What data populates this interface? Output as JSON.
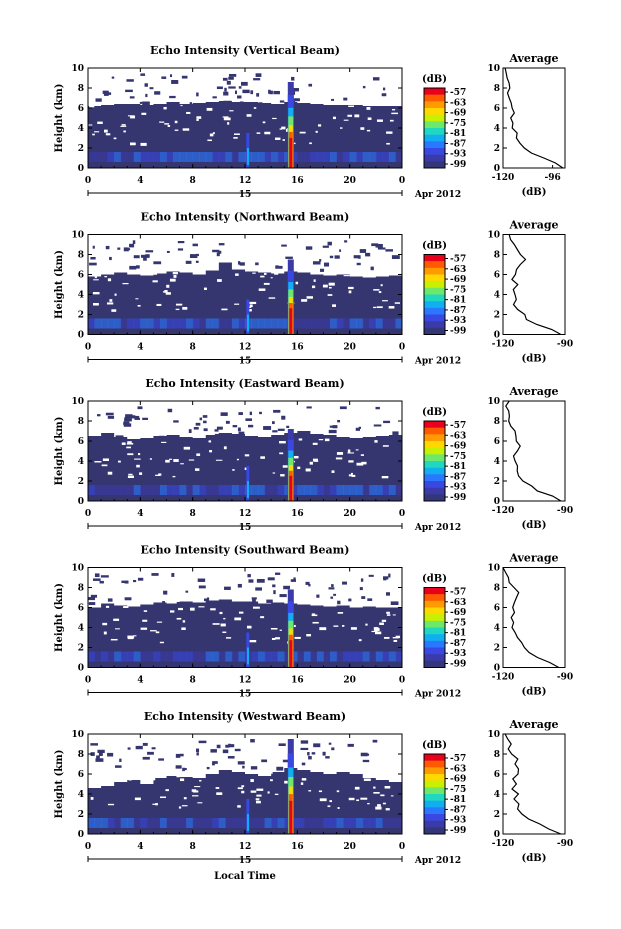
{
  "xlabel": "Local Time",
  "date_label": "Apr 2012",
  "colorbar_unit": "(dB)",
  "colorbar_ticks": [
    "-57",
    "-63",
    "-69",
    "-75",
    "-81",
    "-87",
    "-93",
    "-99"
  ],
  "colorbar_colors": [
    "#e8001c",
    "#ff5a00",
    "#ff9a00",
    "#ffd800",
    "#c8f000",
    "#6ee86a",
    "#20d8c0",
    "#10b0f0",
    "#2a78ff",
    "#3848e0",
    "#3a3aa8",
    "#34367a"
  ],
  "panel_bg_color": "#35366f",
  "avg_title": "Average",
  "avg_xlabel": "(dB)",
  "chart_data": [
    {
      "type": "heatmap",
      "title": "Echo Intensity (Vertical Beam)",
      "ylabel": "Height (km)",
      "xticks": [
        "0",
        "4",
        "8",
        "12",
        "16",
        "20",
        "0"
      ],
      "day_label": "15",
      "yticks": [
        "0",
        "2",
        "4",
        "6",
        "8",
        "10"
      ],
      "xlim": [
        0,
        24
      ],
      "ylim": [
        0,
        10
      ],
      "echo_top_km": [
        6.2,
        6.3,
        6.4,
        6.4,
        6.3,
        6.4,
        6.6,
        6.4,
        6.5,
        6.6,
        6.7,
        6.6,
        6.6,
        6.5,
        6.4,
        6.6,
        6.5,
        6.4,
        6.3,
        6.3,
        6.3,
        6.2,
        6.2,
        6.2
      ],
      "rain_hour": 15.5,
      "rain_top_km": 8.6,
      "avg_xticks": [
        "-120",
        "-96"
      ],
      "avg_xlim": [
        -120,
        -90
      ],
      "avg_profile": {
        "height_km": [
          0,
          0.5,
          1,
          1.5,
          2,
          2.5,
          3,
          3.5,
          4,
          4.5,
          5,
          5.5,
          6,
          6.5,
          7,
          7.5,
          8,
          8.5,
          9,
          9.5,
          10
        ],
        "db": [
          -91,
          -95,
          -101,
          -106,
          -110,
          -112,
          -114,
          -114,
          -116,
          -115,
          -117,
          -115,
          -116,
          -117,
          -116,
          -117,
          -117,
          -118,
          -119,
          -118,
          -119
        ]
      }
    },
    {
      "type": "heatmap",
      "title": "Echo Intensity (Northward Beam)",
      "ylabel": "Height (km)",
      "xticks": [
        "0",
        "4",
        "8",
        "12",
        "16",
        "20",
        "0"
      ],
      "day_label": "15",
      "yticks": [
        "0",
        "2",
        "4",
        "6",
        "8",
        "10"
      ],
      "xlim": [
        0,
        24
      ],
      "ylim": [
        0,
        10
      ],
      "echo_top_km": [
        5.8,
        6.0,
        6.2,
        6.0,
        5.9,
        6.1,
        6.3,
        6.2,
        6.0,
        6.4,
        7.2,
        6.5,
        6.3,
        6.2,
        6.1,
        6.3,
        6.2,
        6.0,
        5.9,
        6.0,
        5.8,
        5.7,
        5.8,
        5.9
      ],
      "rain_hour": 15.5,
      "rain_top_km": 7.5,
      "avg_xticks": [
        "-120",
        "-90"
      ],
      "avg_xlim": [
        -120,
        -90
      ],
      "avg_profile": {
        "height_km": [
          0,
          0.5,
          1,
          1.5,
          2,
          2.5,
          3,
          3.5,
          4,
          4.5,
          5,
          5.5,
          6,
          6.5,
          7,
          7.5,
          8,
          8.5,
          9,
          9.5,
          10
        ],
        "db": [
          -92,
          -97,
          -103,
          -108,
          -110,
          -112,
          -114,
          -113,
          -115,
          -114,
          -113,
          -115,
          -114,
          -113,
          -111,
          -110,
          -112,
          -113,
          -115,
          -116,
          -117
        ]
      }
    },
    {
      "type": "heatmap",
      "title": "Echo Intensity (Eastward Beam)",
      "ylabel": "Height (km)",
      "xticks": [
        "0",
        "4",
        "8",
        "12",
        "16",
        "20",
        "0"
      ],
      "day_label": "15",
      "yticks": [
        "0",
        "2",
        "4",
        "6",
        "8",
        "10"
      ],
      "xlim": [
        0,
        24
      ],
      "ylim": [
        0,
        10
      ],
      "echo_top_km": [
        6.5,
        6.8,
        6.4,
        6.2,
        6.3,
        6.5,
        6.6,
        6.4,
        6.3,
        6.6,
        6.8,
        6.7,
        6.5,
        6.4,
        6.6,
        6.8,
        7.0,
        6.7,
        6.6,
        6.4,
        6.3,
        6.4,
        6.5,
        6.6
      ],
      "rain_hour": 15.5,
      "rain_top_km": 7.2,
      "avg_xticks": [
        "-120",
        "-90"
      ],
      "avg_xlim": [
        -120,
        -90
      ],
      "avg_profile": {
        "height_km": [
          0,
          0.5,
          1,
          1.5,
          2,
          2.5,
          3,
          3.5,
          4,
          4.5,
          5,
          5.5,
          6,
          6.5,
          7,
          7.5,
          8,
          8.5,
          9,
          9.5,
          10
        ],
        "db": [
          -92,
          -97,
          -103,
          -107,
          -110,
          -112,
          -113,
          -112,
          -114,
          -115,
          -113,
          -111,
          -114,
          -113,
          -115,
          -116,
          -117,
          -116,
          -118,
          -119,
          -117
        ]
      }
    },
    {
      "type": "heatmap",
      "title": "Echo Intensity (Southward Beam)",
      "ylabel": "Height (km)",
      "xticks": [
        "0",
        "4",
        "8",
        "12",
        "16",
        "20",
        "0"
      ],
      "day_label": "15",
      "yticks": [
        "0",
        "2",
        "4",
        "6",
        "8",
        "10"
      ],
      "xlim": [
        0,
        24
      ],
      "ylim": [
        0,
        10
      ],
      "echo_top_km": [
        6.0,
        6.4,
        6.2,
        6.1,
        6.3,
        6.5,
        6.4,
        6.6,
        6.5,
        6.7,
        6.8,
        6.6,
        6.6,
        6.4,
        6.5,
        6.4,
        6.3,
        6.2,
        6.1,
        6.2,
        6.0,
        6.1,
        6.0,
        6.0
      ],
      "rain_hour": 15.5,
      "rain_top_km": 7.8,
      "avg_xticks": [
        "-120",
        "-90"
      ],
      "avg_xlim": [
        -120,
        -90
      ],
      "avg_profile": {
        "height_km": [
          0,
          0.5,
          1,
          1.5,
          2,
          2.5,
          3,
          3.5,
          4,
          4.5,
          5,
          5.5,
          6,
          6.5,
          7,
          7.5,
          8,
          8.5,
          9,
          9.5,
          10
        ],
        "db": [
          -93,
          -98,
          -104,
          -108,
          -110,
          -112,
          -113,
          -114,
          -115,
          -114,
          -116,
          -115,
          -116,
          -114,
          -113,
          -112,
          -114,
          -116,
          -118,
          -119,
          -120
        ]
      }
    },
    {
      "type": "heatmap",
      "title": "Echo Intensity (Westward Beam)",
      "ylabel": "Height (km)",
      "xticks": [
        "0",
        "4",
        "8",
        "12",
        "16",
        "20",
        "0"
      ],
      "day_label": "15",
      "yticks": [
        "0",
        "2",
        "4",
        "6",
        "8",
        "10"
      ],
      "xlim": [
        0,
        24
      ],
      "ylim": [
        0,
        10
      ],
      "echo_top_km": [
        4.6,
        4.8,
        5.2,
        5.4,
        5.0,
        5.6,
        5.8,
        5.7,
        5.6,
        6.0,
        6.4,
        6.2,
        6.0,
        5.8,
        6.2,
        6.6,
        6.4,
        6.2,
        6.0,
        6.2,
        6.0,
        5.6,
        5.4,
        5.2
      ],
      "rain_hour": 15.5,
      "rain_top_km": 9.5,
      "avg_xticks": [
        "-120",
        "-90"
      ],
      "avg_xlim": [
        -120,
        -90
      ],
      "avg_profile": {
        "height_km": [
          0,
          0.5,
          1,
          1.5,
          2,
          2.5,
          3,
          3.5,
          4,
          4.5,
          5,
          5.5,
          6,
          6.5,
          7,
          7.5,
          8,
          8.5,
          9,
          9.5,
          10
        ],
        "db": [
          -92,
          -97,
          -103,
          -107,
          -110,
          -112,
          -113,
          -114,
          -113,
          -115,
          -114,
          -115,
          -113,
          -112,
          -114,
          -113,
          -115,
          -117,
          -116,
          -118,
          -119
        ]
      }
    }
  ]
}
